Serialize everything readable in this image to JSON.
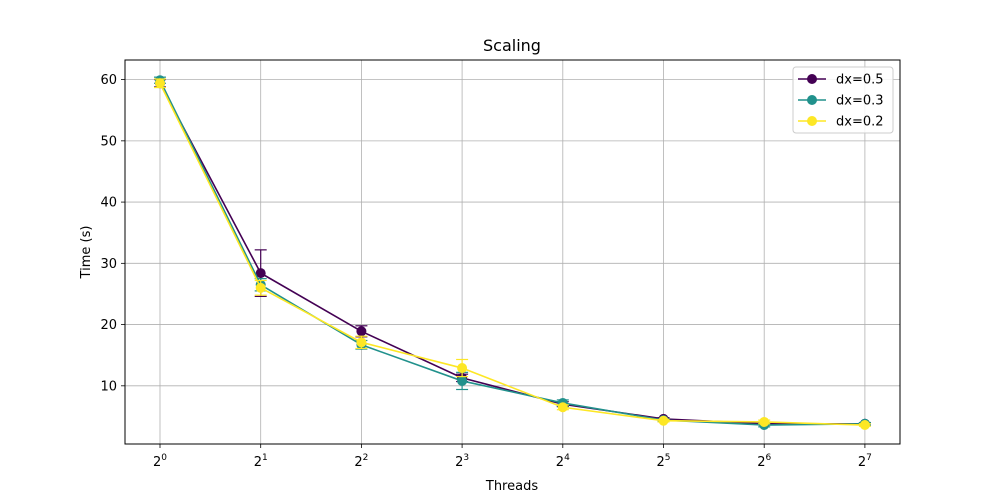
{
  "chart_data": {
    "type": "line",
    "title": "Scaling",
    "xlabel": "Threads",
    "ylabel": "Time (s)",
    "xscale": "log2",
    "x": [
      1,
      2,
      4,
      8,
      16,
      32,
      64,
      128
    ],
    "x_tick_labels": [
      {
        "base": "2",
        "exp": "0"
      },
      {
        "base": "2",
        "exp": "1"
      },
      {
        "base": "2",
        "exp": "2"
      },
      {
        "base": "2",
        "exp": "3"
      },
      {
        "base": "2",
        "exp": "4"
      },
      {
        "base": "2",
        "exp": "5"
      },
      {
        "base": "2",
        "exp": "6"
      },
      {
        "base": "2",
        "exp": "7"
      }
    ],
    "y_ticks": [
      "10",
      "20",
      "30",
      "40",
      "50",
      "60"
    ],
    "ylim": [
      0.5,
      63.2
    ],
    "grid": true,
    "legend_position": "top-right",
    "series": [
      {
        "name": "dx=0.5",
        "color": "#440154",
        "values": [
          59.4,
          28.4,
          18.9,
          11.3,
          7.0,
          4.6,
          3.8,
          3.8
        ],
        "errors": [
          0.6,
          3.8,
          0.9,
          0.6,
          0.4,
          0.2,
          0.2,
          0.2
        ]
      },
      {
        "name": "dx=0.3",
        "color": "#21918c",
        "values": [
          59.9,
          26.5,
          16.7,
          10.8,
          7.2,
          4.4,
          3.6,
          3.8
        ],
        "errors": [
          0.5,
          1.0,
          0.7,
          1.4,
          0.5,
          0.2,
          0.3,
          0.2
        ]
      },
      {
        "name": "dx=0.2",
        "color": "#fde725",
        "values": [
          59.4,
          26.0,
          17.1,
          12.9,
          6.5,
          4.3,
          4.1,
          3.6
        ],
        "errors": [
          0.7,
          1.2,
          1.0,
          1.4,
          0.4,
          0.2,
          0.3,
          0.2
        ]
      }
    ]
  }
}
